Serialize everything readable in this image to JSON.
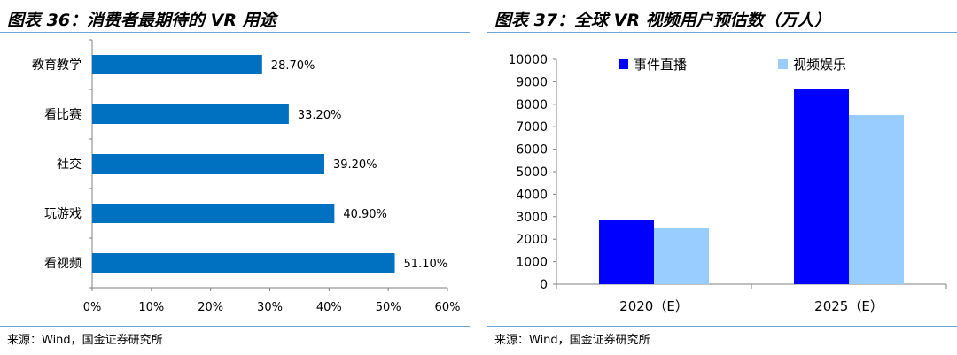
{
  "left": {
    "title": "图表 36：消费者最期待的 VR 用途",
    "source": "来源：Wind，国金证券研究所"
  },
  "right": {
    "title": "图表 37：全球 VR 视频用户预估数（万人）",
    "source": "来源：Wind，国金证券研究所"
  },
  "colors": {
    "bar_left": "#0070c0",
    "series1": "#0000ff",
    "series2": "#99ccff",
    "rule": "#6aa7d8"
  },
  "chart_data": [
    {
      "type": "bar",
      "orientation": "horizontal",
      "categories": [
        "教育教学",
        "看比赛",
        "社交",
        "玩游戏",
        "看视频"
      ],
      "values": [
        28.7,
        33.2,
        39.2,
        40.9,
        51.1
      ],
      "value_labels": [
        "28.70%",
        "33.20%",
        "39.20%",
        "40.90%",
        "51.10%"
      ],
      "x_ticks": [
        "0%",
        "10%",
        "20%",
        "30%",
        "40%",
        "50%",
        "60%"
      ],
      "xlim": [
        0,
        60
      ],
      "grid": false
    },
    {
      "type": "bar",
      "categories": [
        "2020（E）",
        "2025（E）"
      ],
      "series": [
        {
          "name": "事件直播",
          "values": [
            2850,
            8700
          ]
        },
        {
          "name": "视频娱乐",
          "values": [
            2520,
            7520
          ]
        }
      ],
      "y_ticks": [
        "0",
        "1000",
        "2000",
        "3000",
        "4000",
        "5000",
        "6000",
        "7000",
        "8000",
        "9000",
        "10000"
      ],
      "ylim": [
        0,
        10000
      ],
      "legend": "top",
      "grid": false
    }
  ]
}
